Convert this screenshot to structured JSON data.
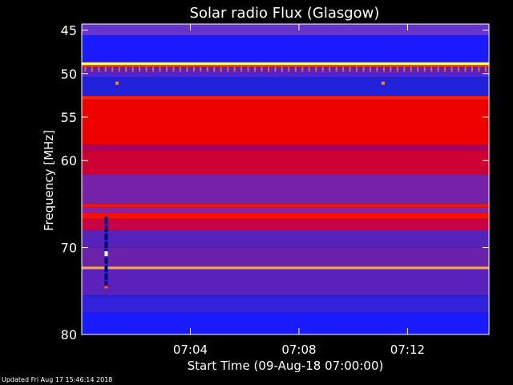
{
  "chart_data": {
    "type": "heatmap",
    "title": "Solar radio Flux (Glasgow)",
    "xlabel": "Start Time (09-Aug-18 07:00:00)",
    "ylabel": "Frequency [MHz]",
    "x_range_minutes": [
      0,
      15
    ],
    "x_ticks": [
      {
        "minute": 4,
        "label": "07:04"
      },
      {
        "minute": 8,
        "label": "07:08"
      },
      {
        "minute": 12,
        "label": "07:12"
      }
    ],
    "y_range_mhz": [
      44.3,
      80
    ],
    "y_ticks": [
      {
        "mhz": 45,
        "label": "45"
      },
      {
        "mhz": 50,
        "label": "50"
      },
      {
        "mhz": 55,
        "label": "55"
      },
      {
        "mhz": 60,
        "label": "60"
      },
      {
        "mhz": 70,
        "label": "70"
      },
      {
        "mhz": 80,
        "label": "80"
      }
    ],
    "frequency_bands": [
      {
        "from": 44.3,
        "to": 45.6,
        "color": "#6633cc"
      },
      {
        "from": 45.6,
        "to": 48.7,
        "color": "#1a1aff"
      },
      {
        "from": 48.7,
        "to": 49.0,
        "color": "#ffff66"
      },
      {
        "from": 49.0,
        "to": 49.2,
        "color": "#ff4400"
      },
      {
        "from": 49.2,
        "to": 50.4,
        "color": "#5522cc"
      },
      {
        "from": 50.4,
        "to": 52.6,
        "color": "#2222dd"
      },
      {
        "from": 52.6,
        "to": 53.0,
        "color": "#ff2200"
      },
      {
        "from": 53.0,
        "to": 58.2,
        "color": "#ee0000"
      },
      {
        "from": 58.2,
        "to": 58.8,
        "color": "#aa0066"
      },
      {
        "from": 58.8,
        "to": 61.6,
        "color": "#cc0033"
      },
      {
        "from": 61.6,
        "to": 65.0,
        "color": "#7722aa"
      },
      {
        "from": 65.0,
        "to": 65.4,
        "color": "#ff1100"
      },
      {
        "from": 65.4,
        "to": 66.0,
        "color": "#8822aa"
      },
      {
        "from": 66.0,
        "to": 66.7,
        "color": "#ff1100"
      },
      {
        "from": 66.7,
        "to": 68.0,
        "color": "#cc0044"
      },
      {
        "from": 68.0,
        "to": 70.0,
        "color": "#5522bb"
      },
      {
        "from": 70.0,
        "to": 72.2,
        "color": "#6a22aa"
      },
      {
        "from": 72.2,
        "to": 72.5,
        "color": "#ffaa44"
      },
      {
        "from": 72.5,
        "to": 75.5,
        "color": "#5a22bb"
      },
      {
        "from": 75.5,
        "to": 77.5,
        "color": "#3322dd"
      },
      {
        "from": 77.5,
        "to": 80.0,
        "color": "#1a1aff"
      }
    ],
    "features": [
      {
        "type": "dashed-line",
        "mhz": 49.5,
        "color": "#ff6600",
        "period_minutes": 0.25
      },
      {
        "type": "dot",
        "minute": 1.3,
        "mhz": 51.1,
        "color": "#ff8800"
      },
      {
        "type": "dot",
        "minute": 11.1,
        "mhz": 51.1,
        "color": "#ff8800"
      },
      {
        "type": "vertical-burst",
        "minute": 0.9,
        "from": 66.4,
        "to": 74.6
      }
    ]
  },
  "footer": {
    "updated": "Updated Fri Aug 17 15:46:14 2018"
  }
}
